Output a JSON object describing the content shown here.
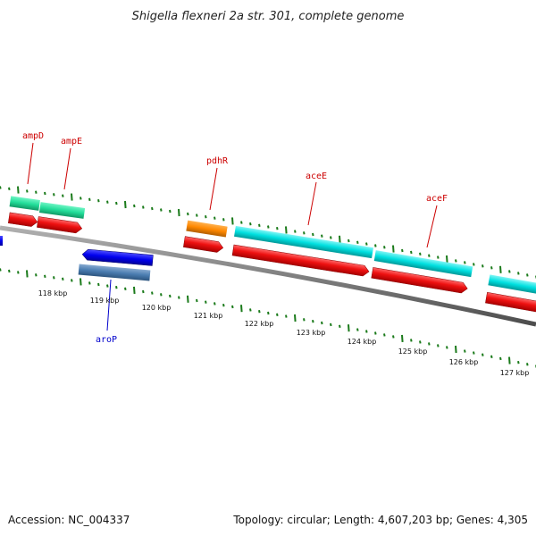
{
  "map": {
    "title": "Shigella flexneri 2a str. 301, complete genome",
    "footer_left": "Accession: NC_004337",
    "footer_right": "Topology: circular; Length: 4,607,203 bp; Genes: 4,305"
  },
  "scale_labels": [
    "118 kbp",
    "119 kbp",
    "120 kbp",
    "121 kbp",
    "122 kbp",
    "123 kbp",
    "124 kbp",
    "125 kbp",
    "126 kbp",
    "127 kbp"
  ],
  "gene_labels": [
    {
      "name": "ampD",
      "color": "#cc0000"
    },
    {
      "name": "ampE",
      "color": "#cc0000"
    },
    {
      "name": "pdhR",
      "color": "#cc0000"
    },
    {
      "name": "aceE",
      "color": "#cc0000"
    },
    {
      "name": "aceF",
      "color": "#cc0000"
    },
    {
      "name": "aroP",
      "color": "#0000cc"
    }
  ],
  "colors": {
    "backbone": "#7a7a7a",
    "tick": "#1a7a1a",
    "forward_cds": "#ee1111",
    "feature_teal": "#22dd99",
    "feature_orange": "#ff8800",
    "feature_cyan": "#00e5e5",
    "reverse_cds": "#0000ee",
    "feature_steel": "#4a7cb0"
  }
}
